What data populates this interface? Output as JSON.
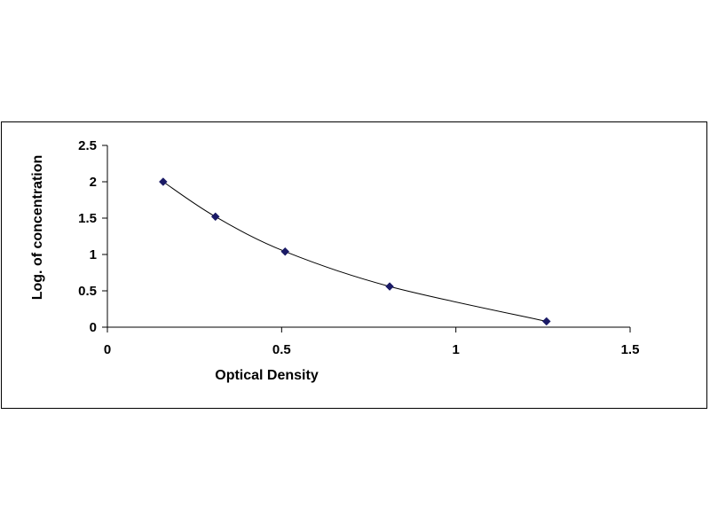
{
  "chart_data": {
    "type": "scatter",
    "title": "",
    "xlabel": "Optical Density",
    "ylabel": "Log. of concentration",
    "xlim": [
      0,
      1.5
    ],
    "ylim": [
      0,
      2.5
    ],
    "xticks": [
      0,
      0.5,
      1,
      1.5
    ],
    "yticks": [
      0,
      0.5,
      1,
      1.5,
      2,
      2.5
    ],
    "xtick_labels": [
      "0",
      "0.5",
      "1",
      "1.5"
    ],
    "ytick_labels": [
      "0",
      "0.5",
      "1",
      "1.5",
      "2",
      "2.5"
    ],
    "grid": false,
    "legend": "none",
    "trendline": "smooth curve through points",
    "series": [
      {
        "x": [
          0.16,
          0.31,
          0.51,
          0.81,
          1.26
        ],
        "y": [
          2.0,
          1.52,
          1.04,
          0.56,
          0.08
        ]
      }
    ],
    "colors": {
      "marker": "#1a1a66",
      "curve": "#000000",
      "axes": "#000000"
    }
  }
}
